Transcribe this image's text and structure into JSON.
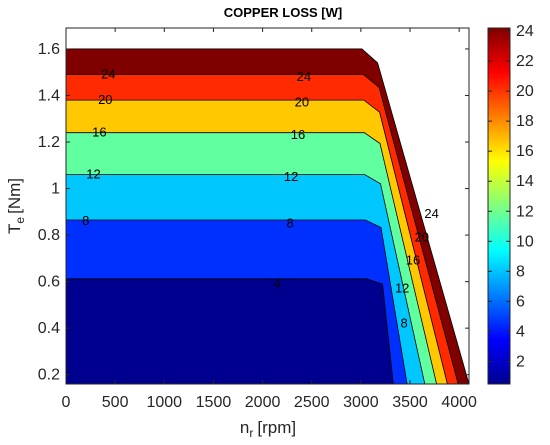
{
  "chart_data": {
    "type": "contour",
    "title": "COPPER LOSS [W]",
    "xlabel": {
      "symbol": "n",
      "subscript": "r",
      "unit": "[rpm]"
    },
    "ylabel": {
      "symbol": "T",
      "subscript": "e",
      "unit": "[Nm]"
    },
    "xlim": [
      0,
      4100
    ],
    "ylim": [
      0.16,
      1.69
    ],
    "x_ticks": [
      0,
      500,
      1000,
      1500,
      2000,
      2500,
      3000,
      3500,
      4000
    ],
    "y_ticks": [
      0.2,
      0.4,
      0.6,
      0.8,
      1.0,
      1.2,
      1.4,
      1.6
    ],
    "y_tick_labels": [
      "0.2",
      "0.4",
      "0.6",
      "0.8",
      "1",
      "1.2",
      "1.4",
      "1.6"
    ],
    "colorbar": {
      "min": 0.5,
      "max": 24.2,
      "ticks": [
        2,
        4,
        6,
        8,
        10,
        12,
        14,
        16,
        18,
        20,
        22,
        24
      ],
      "colormap": "jet"
    },
    "level_colors": {
      "0": "#00008f",
      "4": "#0030ff",
      "8": "#00c8ff",
      "12": "#60ff9f",
      "16": "#ffc800",
      "20": "#ff2a00",
      "24": "#800000"
    },
    "contours": [
      {
        "level": 4,
        "torque": 0.612,
        "corner_speed": 3060,
        "boundary_x_low": 3330,
        "label_positions": [
          [
            2150,
            0.59
          ]
        ]
      },
      {
        "level": 8,
        "torque": 0.865,
        "corner_speed": 3045,
        "boundary_x_low": 3470,
        "label_positions": [
          [
            200,
            0.86
          ],
          [
            2280,
            0.85
          ],
          [
            3440,
            0.42
          ]
        ]
      },
      {
        "level": 12,
        "torque": 1.06,
        "corner_speed": 3040,
        "boundary_x_low": 3650,
        "label_positions": [
          [
            280,
            1.06
          ],
          [
            2290,
            1.05
          ],
          [
            3420,
            0.57
          ]
        ]
      },
      {
        "level": 16,
        "torque": 1.24,
        "corner_speed": 3035,
        "boundary_x_low": 3770,
        "label_positions": [
          [
            340,
            1.24
          ],
          [
            2360,
            1.23
          ],
          [
            3530,
            0.69
          ]
        ]
      },
      {
        "level": 20,
        "torque": 1.38,
        "corner_speed": 3030,
        "boundary_x_low": 3880,
        "label_positions": [
          [
            400,
            1.38
          ],
          [
            2400,
            1.37
          ],
          [
            3620,
            0.79
          ]
        ]
      },
      {
        "level": 24,
        "torque": 1.49,
        "corner_speed": 3025,
        "boundary_x_low": 3990,
        "label_positions": [
          [
            430,
            1.49
          ],
          [
            2420,
            1.48
          ],
          [
            3720,
            0.89
          ]
        ]
      }
    ],
    "outer_boundary": {
      "max_torque": 1.6,
      "corner_speed": 3010,
      "max_speed_at_min_torque": 4100
    },
    "grid": false
  }
}
